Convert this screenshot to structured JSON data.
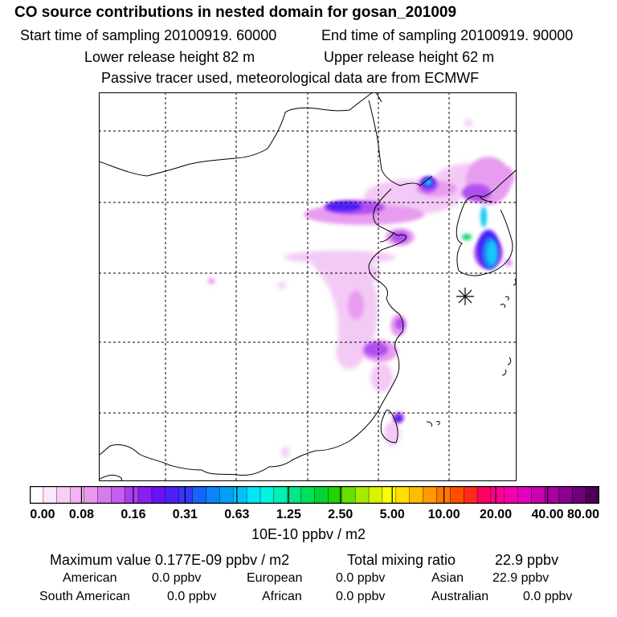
{
  "header": {
    "title": "CO  source contributions in nested domain for gosan_201009",
    "start_label": "Start time of sampling 20100919. 60000",
    "end_label": "End time of sampling 20100919. 90000",
    "lower_label": "Lower release height   82 m",
    "upper_label": "Upper release height   62 m",
    "tracer_note": "Passive tracer used, meteorological data are from ECMWF"
  },
  "colorbar": {
    "ticks": [
      "0.00",
      "0.08",
      "0.16",
      "0.31",
      "0.63",
      "1.25",
      "2.50",
      "5.00",
      "10.00",
      "20.00",
      "40.00",
      "80.00"
    ],
    "unit": "10E-10 ppbv / m2",
    "colors": [
      "#ffffff",
      "#fde6fd",
      "#f8cdf8",
      "#f2b3f3",
      "#e99aee",
      "#d87ceb",
      "#c35eed",
      "#a93eef",
      "#8a1ff2",
      "#6b10f5",
      "#4e1ef8",
      "#3138fb",
      "#1764fb",
      "#0a84fa",
      "#00a0f8",
      "#00c2f6",
      "#00e6f2",
      "#00f5dc",
      "#00f0b2",
      "#00e88a",
      "#00de5a",
      "#00d436",
      "#20d400",
      "#66e000",
      "#a6ea00",
      "#d8f200",
      "#ffff00",
      "#ffde00",
      "#ffbd00",
      "#ff9a00",
      "#ff7700",
      "#ff5000",
      "#ff2a20",
      "#ff0060",
      "#ff0090",
      "#f500b0",
      "#e200bb",
      "#c800b0",
      "#aa00a0",
      "#8c0090",
      "#6e0078",
      "#4a0055"
    ]
  },
  "summary": {
    "max_label": "Maximum value  0.177E-09 ppbv / m2",
    "total_label": "Total mixing ratio",
    "total_value": "22.9 ppbv",
    "regions": [
      {
        "name": "American",
        "value": "0.0 ppbv"
      },
      {
        "name": "European",
        "value": "0.0 ppbv"
      },
      {
        "name": "Asian",
        "value": "22.9 ppbv"
      },
      {
        "name": "South American",
        "value": "0.0 ppbv"
      },
      {
        "name": "African",
        "value": "0.0 ppbv"
      },
      {
        "name": "Australian",
        "value": "0.0 ppbv"
      }
    ]
  },
  "map": {
    "receptor_marker": "asterisk-marker",
    "plume_colors": {
      "faint": "#f3c9f5",
      "light": "#e89cf0",
      "medium": "#b050f0",
      "strong": "#4b1cf6",
      "cyan": "#14c8f8",
      "blue": "#1e82f8",
      "green": "#10d870"
    }
  }
}
